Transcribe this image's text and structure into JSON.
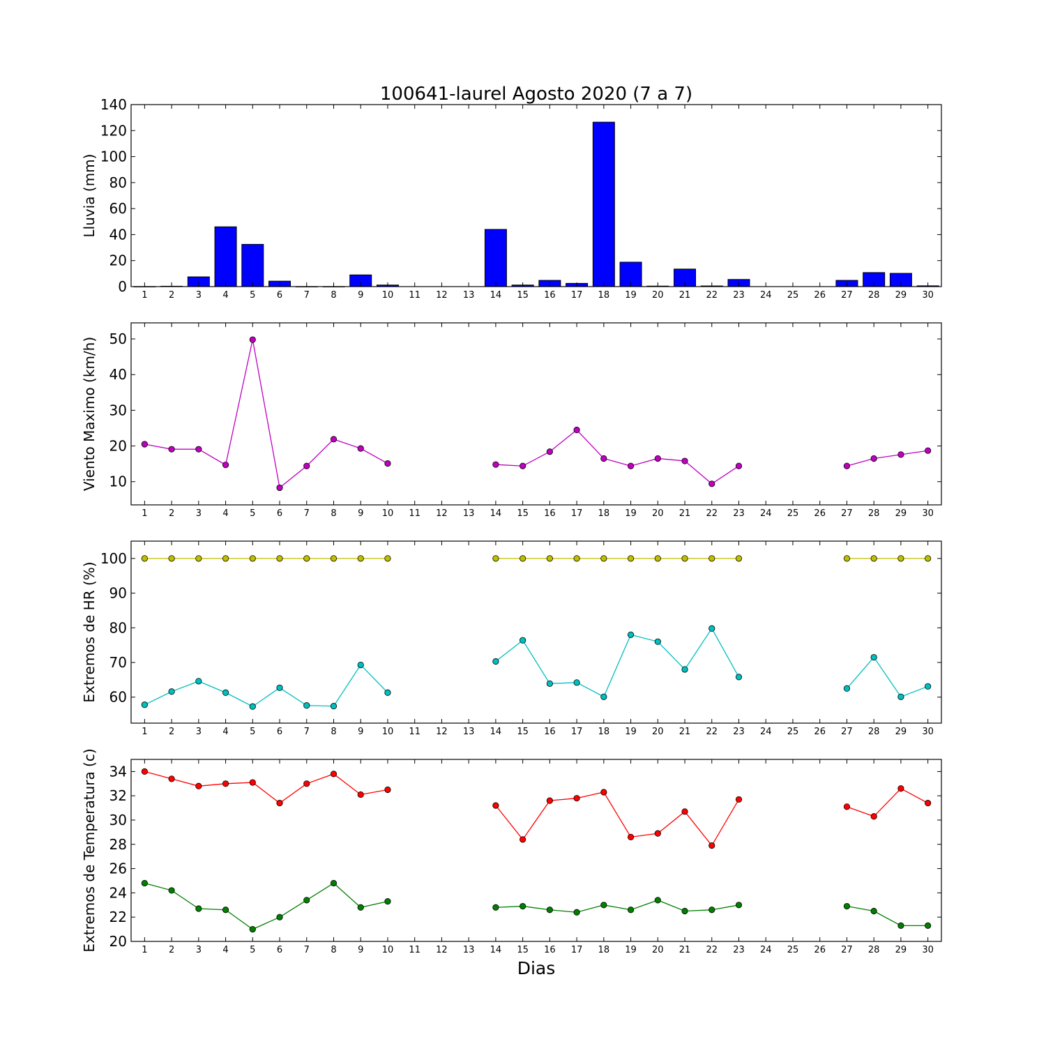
{
  "figure": {
    "title": "100641-laurel Agosto 2020  (7 a 7)",
    "xlabel": "Dias"
  },
  "chart_data": [
    {
      "type": "bar",
      "ylabel": "Lluvia (mm)",
      "ylim": [
        0,
        140
      ],
      "yticks": [
        0,
        20,
        40,
        60,
        80,
        100,
        120,
        140
      ],
      "categories": [
        1,
        2,
        3,
        4,
        5,
        6,
        7,
        8,
        9,
        10,
        11,
        12,
        13,
        14,
        15,
        16,
        17,
        18,
        19,
        20,
        21,
        22,
        23,
        24,
        25,
        26,
        27,
        28,
        29,
        30
      ],
      "series": [
        {
          "color": "#0000ff",
          "values": [
            0,
            0.3,
            7.5,
            46,
            32.5,
            4.2,
            0,
            0,
            9,
            1.2,
            null,
            null,
            null,
            44,
            1.2,
            4.8,
            2.5,
            126.5,
            18.8,
            0.4,
            13.5,
            0.5,
            5.5,
            null,
            null,
            null,
            4.8,
            10.8,
            10.2,
            0.6
          ]
        }
      ]
    },
    {
      "type": "line",
      "ylabel": "Viento Maximo (km/h)",
      "ylim": [
        3.5,
        54.5
      ],
      "yticks": [
        10,
        20,
        30,
        40,
        50
      ],
      "categories": [
        1,
        2,
        3,
        4,
        5,
        6,
        7,
        8,
        9,
        10,
        11,
        12,
        13,
        14,
        15,
        16,
        17,
        18,
        19,
        20,
        21,
        22,
        23,
        24,
        25,
        26,
        27,
        28,
        29,
        30
      ],
      "series": [
        {
          "color": "#bf00bf",
          "values": [
            20.5,
            19.1,
            19.1,
            14.7,
            49.8,
            8.3,
            14.4,
            21.9,
            19.3,
            15.1,
            null,
            null,
            null,
            14.8,
            14.4,
            18.4,
            24.5,
            16.5,
            14.4,
            16.5,
            15.8,
            9.4,
            14.4,
            null,
            null,
            null,
            14.4,
            16.5,
            17.6,
            18.7
          ]
        }
      ]
    },
    {
      "type": "line",
      "ylabel": "Extremos de HR (%)",
      "ylim": [
        52.5,
        105
      ],
      "yticks": [
        60,
        70,
        80,
        90,
        100
      ],
      "categories": [
        1,
        2,
        3,
        4,
        5,
        6,
        7,
        8,
        9,
        10,
        11,
        12,
        13,
        14,
        15,
        16,
        17,
        18,
        19,
        20,
        21,
        22,
        23,
        24,
        25,
        26,
        27,
        28,
        29,
        30
      ],
      "series": [
        {
          "color": "#bfbf00",
          "values": [
            100,
            100,
            100,
            100,
            100,
            100,
            100,
            100,
            100,
            100,
            null,
            null,
            null,
            100,
            100,
            100,
            100,
            100,
            100,
            100,
            100,
            100,
            100,
            null,
            null,
            null,
            100,
            100,
            100,
            100
          ]
        },
        {
          "color": "#00bfbf",
          "values": [
            57.8,
            61.6,
            64.6,
            61.3,
            57.3,
            62.7,
            57.6,
            57.4,
            69.3,
            61.3,
            null,
            null,
            null,
            70.3,
            76.4,
            63.9,
            64.2,
            60.1,
            78.0,
            76.0,
            68.0,
            79.8,
            65.8,
            null,
            null,
            null,
            62.5,
            71.5,
            60.1,
            63.1
          ]
        }
      ]
    },
    {
      "type": "line",
      "ylabel": "Extremos de Temperatura (c)",
      "ylim": [
        20,
        35
      ],
      "yticks": [
        20,
        22,
        24,
        26,
        28,
        30,
        32,
        34
      ],
      "categories": [
        1,
        2,
        3,
        4,
        5,
        6,
        7,
        8,
        9,
        10,
        11,
        12,
        13,
        14,
        15,
        16,
        17,
        18,
        19,
        20,
        21,
        22,
        23,
        24,
        25,
        26,
        27,
        28,
        29,
        30
      ],
      "series": [
        {
          "color": "#ff0000",
          "values": [
            34.0,
            33.4,
            32.8,
            33.0,
            33.1,
            31.4,
            33.0,
            33.8,
            32.1,
            32.5,
            null,
            null,
            null,
            31.2,
            28.4,
            31.6,
            31.8,
            32.3,
            28.6,
            28.9,
            30.7,
            27.9,
            31.7,
            null,
            null,
            null,
            31.1,
            30.3,
            32.6,
            31.4
          ]
        },
        {
          "color": "#007f00",
          "values": [
            24.8,
            24.2,
            22.7,
            22.6,
            21.0,
            22.0,
            23.4,
            24.8,
            22.8,
            23.3,
            null,
            null,
            null,
            22.8,
            22.9,
            22.6,
            22.4,
            23.0,
            22.6,
            23.4,
            22.5,
            22.6,
            23.0,
            null,
            null,
            null,
            22.9,
            22.5,
            21.3,
            21.3
          ]
        }
      ]
    }
  ]
}
